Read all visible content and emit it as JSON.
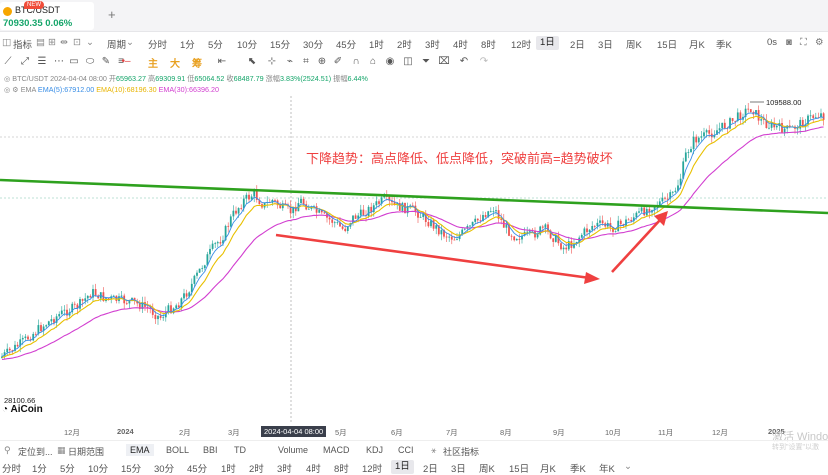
{
  "tab": {
    "symbol": "BTC/USDT",
    "price": "70930.35",
    "change": "0.06%",
    "new_badge": "NEW",
    "add": "+"
  },
  "periodbar": {
    "indicator_label": "指标",
    "cycle_label": "周期",
    "periods": [
      "分时",
      "1分",
      "5分",
      "10分",
      "15分",
      "30分",
      "45分",
      "1时",
      "2时",
      "3时",
      "4时",
      "8时",
      "12时",
      "1日",
      "2日",
      "3日",
      "周K",
      "15日",
      "月K",
      "季K"
    ],
    "selected": "1日",
    "countdown": "0s"
  },
  "toolbar": {
    "indicators": [
      "主",
      "大",
      "筹"
    ]
  },
  "info": {
    "pair": "BTC/USDT",
    "datetime": "2024-04-04 08:00",
    "open_label": "开",
    "open": "65963.27",
    "high_label": "高",
    "high": "69309.91",
    "low_label": "低",
    "low": "65064.52",
    "close_label": "收",
    "close": "68487.79",
    "change_label": "涨幅",
    "change": "3.83%(2524.51)",
    "amp_label": "振幅",
    "amp": "6.44%",
    "ema_label": "EMA",
    "ema5": "EMA(5):67912.00",
    "ema10": "EMA(10):68196.30",
    "ema30": "EMA(30):66396.20"
  },
  "chart": {
    "annotation": "下降趋势：高点降低、低点降低，突破前高=趋势破坏",
    "high_price_label": "109588.00",
    "low_price_label": "28100.66",
    "crosshair_date": "2024-04-04 08:00",
    "colors": {
      "up": "#26a69a",
      "down": "#ef5350",
      "trendline": "#2ea11e",
      "arrow": "#ef4040",
      "ema5": "#3a8ee6",
      "ema10": "#e8c000",
      "ema30": "#d23fd0"
    }
  },
  "xaxis": {
    "labels": [
      "12月",
      "2024",
      "2月",
      "3月",
      "5月",
      "6月",
      "7月",
      "8月",
      "9月",
      "10月",
      "11月",
      "12月",
      "2025"
    ]
  },
  "logo": "AiCoin",
  "indicator_bar": {
    "locate": "定位到...",
    "range": "日期范围",
    "items": [
      "EMA",
      "BOLL",
      "BBI",
      "TD",
      "Volume",
      "MACD",
      "KDJ",
      "CCI",
      "社区指标"
    ],
    "selected": "EMA"
  },
  "periodbar2": {
    "periods": [
      "分时",
      "1分",
      "5分",
      "10分",
      "15分",
      "30分",
      "45分",
      "1时",
      "2时",
      "3时",
      "4时",
      "8时",
      "12时",
      "1日",
      "2日",
      "3日",
      "周K",
      "15日",
      "月K",
      "季K",
      "年K"
    ],
    "selected": "1日"
  },
  "watermark": {
    "line1": "激活 Windo",
    "line2": "转到\"设置\"以激"
  }
}
